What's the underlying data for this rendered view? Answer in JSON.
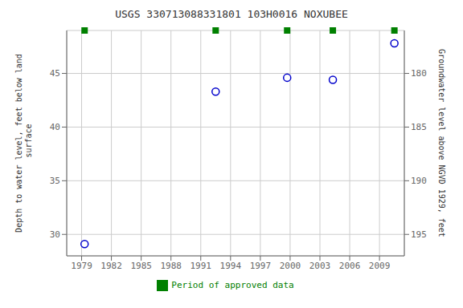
{
  "chart_data": {
    "type": "scatter",
    "title": "USGS 330713088331801 103H0016  NOXUBEE",
    "ylabel": "Depth to water level, feet below land\n surface",
    "y2label": "Groundwater level above NGVD 1929, feet",
    "x": [
      1979.3,
      1992.5,
      1999.7,
      2004.3,
      2010.5
    ],
    "series": [
      {
        "color": "#0000cc",
        "marker": "open_circle",
        "values": [
          29.1,
          43.3,
          44.6,
          44.4,
          47.8
        ]
      },
      {
        "name": "Period of approved data",
        "color": "#008000",
        "marker": "square",
        "values": [
          49,
          49,
          49,
          49,
          49
        ]
      }
    ],
    "xlim": [
      1977.5,
      2011.5
    ],
    "xticks": [
      1979,
      1982,
      1985,
      1988,
      1991,
      1994,
      1997,
      2000,
      2003,
      2006,
      2009
    ],
    "ylim": [
      28,
      49
    ],
    "yticks": [
      30,
      35,
      40,
      45
    ],
    "y2lim": [
      197,
      176
    ],
    "y2ticks": [
      195,
      190,
      185,
      180
    ],
    "grid": true,
    "legend": "bottom"
  }
}
